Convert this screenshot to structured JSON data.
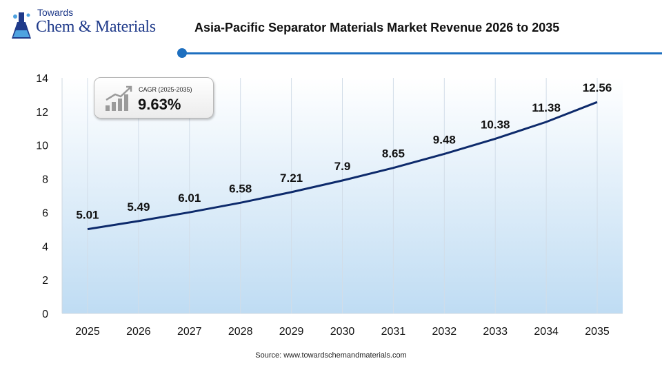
{
  "logo": {
    "line1": "Towards",
    "line2": "Chem & Materials"
  },
  "header": {
    "title": "Asia-Pacific Separator Materials Market Revenue 2026 to 2035"
  },
  "cagr": {
    "label": "CAGR (2025-2035)",
    "value": "9.63%"
  },
  "source": "Source: www.towardschemandmaterials.com",
  "colors": {
    "accent": "#1e6fbf",
    "line": "#0d2a6b",
    "logo": "#1f3a8a"
  },
  "chart_data": {
    "type": "area",
    "title": "Asia-Pacific Separator Materials Market Revenue 2026 to 2035",
    "xlabel": "",
    "ylabel": "",
    "x": [
      "2025",
      "2026",
      "2027",
      "2028",
      "2029",
      "2030",
      "2031",
      "2032",
      "2033",
      "2034",
      "2035"
    ],
    "values": [
      5.01,
      5.49,
      6.01,
      6.58,
      7.21,
      7.9,
      8.65,
      9.48,
      10.38,
      11.38,
      12.56
    ],
    "data_labels": [
      "5.01",
      "5.49",
      "6.01",
      "6.58",
      "7.21",
      "7.9",
      "8.65",
      "9.48",
      "10.38",
      "11.38",
      "12.56"
    ],
    "y_ticks": [
      "0",
      "2",
      "4",
      "6",
      "8",
      "10",
      "12",
      "14"
    ],
    "ylim": [
      0,
      14
    ],
    "grid": "vertical",
    "legend": "none"
  }
}
